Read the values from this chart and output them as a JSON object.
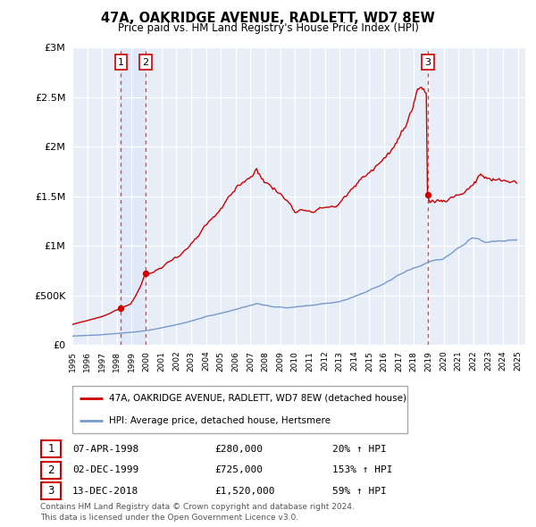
{
  "title": "47A, OAKRIDGE AVENUE, RADLETT, WD7 8EW",
  "subtitle": "Price paid vs. HM Land Registry's House Price Index (HPI)",
  "ytick_values": [
    0,
    500000,
    1000000,
    1500000,
    2000000,
    2500000,
    3000000
  ],
  "ylim": [
    0,
    3000000
  ],
  "xlim_start": 1995.0,
  "xlim_end": 2025.5,
  "transactions": [
    {
      "label": "1",
      "date": "07-APR-1998",
      "price": 280000,
      "year": 1998.27,
      "pct": "20%",
      "dir": "↑"
    },
    {
      "label": "2",
      "date": "02-DEC-1999",
      "price": 725000,
      "year": 1999.92,
      "pct": "153%",
      "dir": "↑"
    },
    {
      "label": "3",
      "date": "13-DEC-2018",
      "price": 1520000,
      "year": 2018.95,
      "pct": "59%",
      "dir": "↑"
    }
  ],
  "legend_line1": "47A, OAKRIDGE AVENUE, RADLETT, WD7 8EW (detached house)",
  "legend_line2": "HPI: Average price, detached house, Hertsmere",
  "footnote1": "Contains HM Land Registry data © Crown copyright and database right 2024.",
  "footnote2": "This data is licensed under the Open Government Licence v3.0.",
  "price_line_color": "#cc0000",
  "hpi_line_color": "#7799cc",
  "background_color": "#ffffff",
  "plot_bg_color": "#e8eef8",
  "grid_color": "#ffffff",
  "vline_color": "#dd4444",
  "box_edge_color": "#cc0000",
  "shade_color": "#dde8f8",
  "dot_color": "#cc0000"
}
